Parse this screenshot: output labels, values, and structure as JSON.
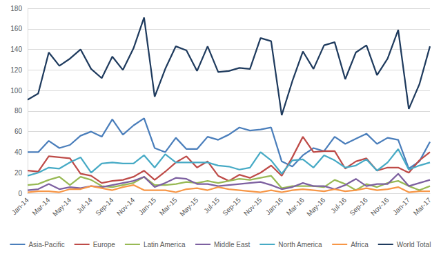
{
  "chart_data": {
    "type": "line",
    "categories": [
      "Jan-14",
      null,
      "Mar-14",
      null,
      "May-14",
      null,
      "Jul-14",
      null,
      "Sep-14",
      null,
      "Nov-14",
      null,
      "Jan-15",
      null,
      "Mar-15",
      null,
      "May-15",
      null,
      "Jul-15",
      null,
      "Sep-15",
      null,
      "Nov-15",
      null,
      "Jan-16",
      null,
      "Mar-16",
      null,
      "May-16",
      null,
      "Jul-16",
      null,
      "Sep-16",
      null,
      "Nov-16",
      null,
      "Jan-17",
      null,
      "Mar-17"
    ],
    "series": [
      {
        "name": "Asia-Pacific",
        "color": "#4a7ebb",
        "values": [
          40,
          40,
          51,
          44,
          47,
          56,
          60,
          55,
          72,
          57,
          66,
          73,
          44,
          40,
          54,
          43,
          43,
          55,
          52,
          57,
          64,
          61,
          62,
          64,
          31,
          26,
          37,
          44,
          41,
          55,
          48,
          53,
          58,
          48,
          54,
          52,
          24,
          31,
          50
        ]
      },
      {
        "name": "Europe",
        "color": "#be4b48",
        "values": [
          22,
          21,
          36,
          35,
          34,
          19,
          17,
          10,
          12,
          13,
          16,
          22,
          13,
          21,
          30,
          36,
          25,
          31,
          17,
          12,
          18,
          15,
          20,
          27,
          17,
          35,
          55,
          40,
          41,
          41,
          24,
          31,
          34,
          22,
          25,
          25,
          20,
          32,
          40
        ]
      },
      {
        "name": "Latin America",
        "color": "#98b954",
        "values": [
          8,
          9,
          13,
          16,
          8,
          16,
          13,
          7,
          6,
          8,
          10,
          16,
          8,
          8,
          9,
          11,
          10,
          12,
          10,
          12,
          14,
          13,
          15,
          17,
          5,
          7,
          7,
          7,
          6,
          13,
          9,
          3,
          9,
          6,
          10,
          12,
          7,
          3,
          7
        ]
      },
      {
        "name": "Middle East",
        "color": "#7d60a0",
        "values": [
          3,
          4,
          9,
          4,
          6,
          5,
          7,
          6,
          8,
          10,
          12,
          16,
          6,
          10,
          15,
          14,
          9,
          9,
          7,
          8,
          9,
          10,
          11,
          8,
          4,
          6,
          10,
          7,
          7,
          4,
          8,
          14,
          7,
          9,
          9,
          19,
          7,
          10,
          13
        ]
      },
      {
        "name": "North America",
        "color": "#46aac5",
        "values": [
          17,
          20,
          25,
          24,
          30,
          35,
          20,
          29,
          30,
          29,
          29,
          37,
          25,
          38,
          30,
          30,
          30,
          30,
          27,
          26,
          23,
          25,
          40,
          32,
          19,
          32,
          33,
          25,
          37,
          32,
          25,
          27,
          33,
          22,
          30,
          43,
          23,
          27,
          30
        ]
      },
      {
        "name": "Africa",
        "color": "#f79646",
        "values": [
          1,
          2,
          2,
          1,
          4,
          4,
          7,
          5,
          3,
          6,
          8,
          3,
          3,
          3,
          1,
          4,
          5,
          3,
          6,
          4,
          3,
          2,
          1,
          3,
          1,
          3,
          4,
          3,
          2,
          4,
          2,
          3,
          5,
          3,
          4,
          6,
          1,
          2,
          2
        ]
      },
      {
        "name": "World Total",
        "color": "#1f3b5e",
        "values": [
          91,
          97,
          137,
          124,
          131,
          140,
          121,
          112,
          133,
          120,
          141,
          171,
          94,
          121,
          143,
          139,
          119,
          143,
          118,
          119,
          122,
          121,
          151,
          148,
          76,
          109,
          138,
          121,
          144,
          147,
          111,
          137,
          144,
          115,
          131,
          159,
          82,
          106,
          143
        ]
      }
    ],
    "ylim": [
      0,
      180
    ],
    "yticks": [
      0,
      20,
      40,
      60,
      80,
      100,
      120,
      140,
      160,
      180
    ],
    "grid": true,
    "legend": "bottom"
  }
}
